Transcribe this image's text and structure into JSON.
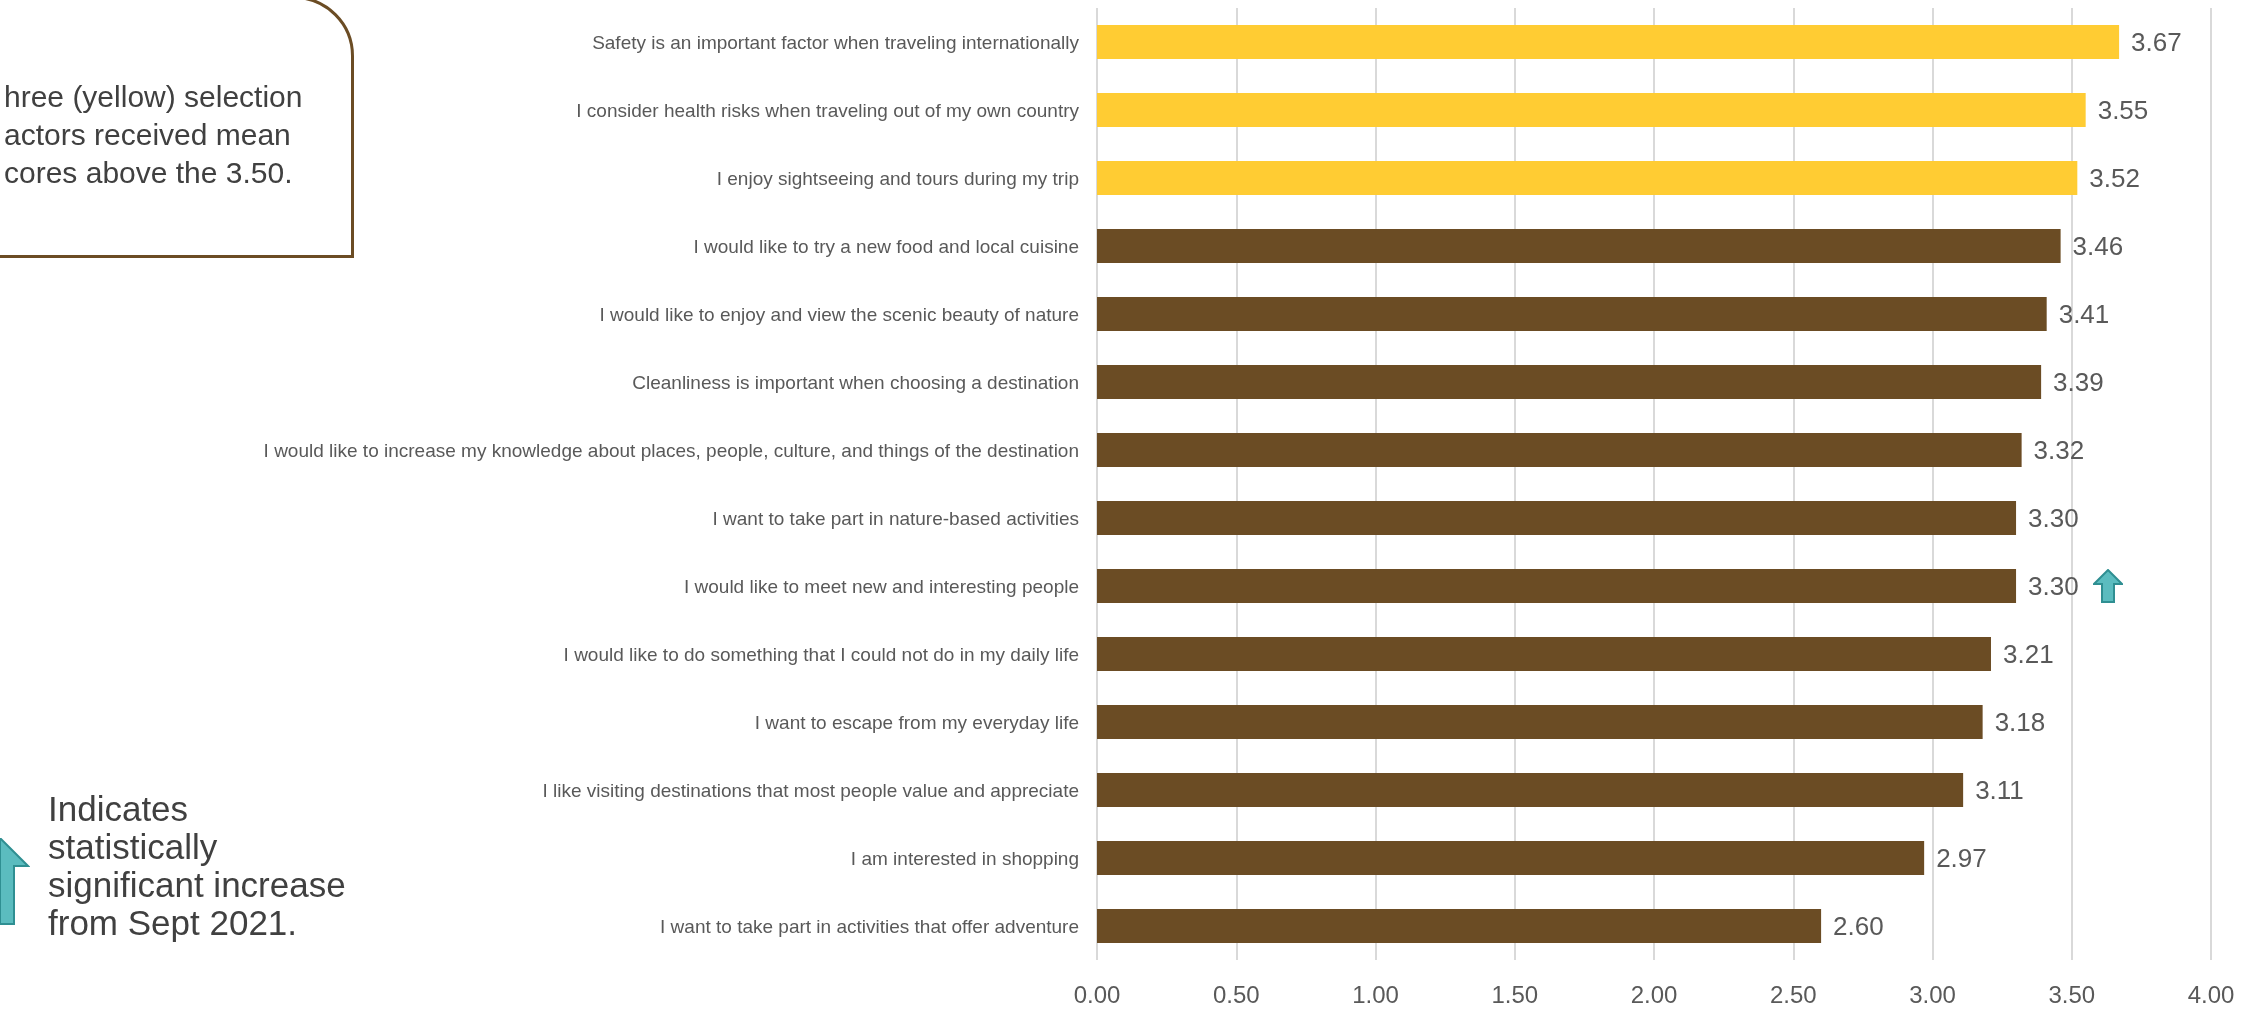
{
  "chart_data": {
    "type": "bar",
    "orientation": "horizontal",
    "categories": [
      "Safety is an important factor when traveling internationally",
      "I consider health risks when traveling out of my own country",
      "I enjoy sightseeing and tours during my trip",
      "I would like to try a new food and local cuisine",
      "I would like to enjoy and view the scenic beauty of nature",
      "Cleanliness is important when choosing a destination",
      "I would like to increase my knowledge about places, people, culture, and things of the destination",
      "I want to take part in nature-based activities",
      "I would like to meet new and interesting people",
      "I would like to do something that I could not do in my daily life",
      "I want to escape from my everyday life",
      "I like visiting destinations that most people value and appreciate",
      "I am interested in shopping",
      "I want to take part in activities that offer adventure"
    ],
    "values": [
      3.67,
      3.55,
      3.52,
      3.46,
      3.41,
      3.39,
      3.32,
      3.3,
      3.3,
      3.21,
      3.18,
      3.11,
      2.97,
      2.6
    ],
    "value_labels": [
      "3.67",
      "3.55",
      "3.52",
      "3.46",
      "3.41",
      "3.39",
      "3.32",
      "3.30",
      "3.30",
      "3.21",
      "3.18",
      "3.11",
      "2.97",
      "2.60"
    ],
    "colors": [
      "#ffcc33",
      "#ffcc33",
      "#ffcc33",
      "#6b4c24",
      "#6b4c24",
      "#6b4c24",
      "#6b4c24",
      "#6b4c24",
      "#6b4c24",
      "#6b4c24",
      "#6b4c24",
      "#6b4c24",
      "#6b4c24",
      "#6b4c24"
    ],
    "xlim": [
      0,
      4
    ],
    "xticks": [
      {
        "value": 0,
        "label": "0.00"
      },
      {
        "value": 0.5,
        "label": "0.50"
      },
      {
        "value": 1,
        "label": "1.00"
      },
      {
        "value": 1.5,
        "label": "1.50"
      },
      {
        "value": 2,
        "label": "2.00"
      },
      {
        "value": 2.5,
        "label": "2.50"
      },
      {
        "value": 3,
        "label": "3.00"
      },
      {
        "value": 3.5,
        "label": "3.50"
      },
      {
        "value": 4,
        "label": "4.00"
      }
    ],
    "grid": "x",
    "annotations": [
      "hree (yellow) selection\nactors received mean\ncores above the 3.50.",
      "Indicates\nstatistically\nsignificant increase\nfrom Sept 2021."
    ]
  }
}
